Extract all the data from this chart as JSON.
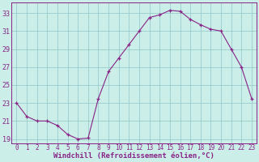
{
  "x": [
    0,
    1,
    2,
    3,
    4,
    5,
    6,
    7,
    8,
    9,
    10,
    11,
    12,
    13,
    14,
    15,
    16,
    17,
    18,
    19,
    20,
    21,
    22,
    23
  ],
  "y": [
    23.0,
    21.5,
    21.0,
    21.0,
    20.5,
    19.5,
    19.0,
    19.1,
    23.5,
    26.5,
    28.0,
    29.5,
    31.0,
    32.5,
    32.8,
    33.3,
    33.2,
    32.3,
    31.7,
    31.2,
    31.0,
    29.0,
    27.0,
    23.5
  ],
  "line_color": "#882288",
  "marker": "+",
  "markersize": 3.5,
  "linewidth": 0.8,
  "bg_color": "#cceee8",
  "grid_color": "#99cccc",
  "xlabel": "Windchill (Refroidissement éolien,°C)",
  "ylabel_ticks": [
    19,
    21,
    23,
    25,
    27,
    29,
    31,
    33
  ],
  "xlim": [
    -0.5,
    23.5
  ],
  "ylim": [
    18.5,
    34.2
  ],
  "xticks": [
    0,
    1,
    2,
    3,
    4,
    5,
    6,
    7,
    8,
    9,
    10,
    11,
    12,
    13,
    14,
    15,
    16,
    17,
    18,
    19,
    20,
    21,
    22,
    23
  ],
  "font_color": "#882288",
  "xlabel_fontsize": 6.5,
  "tick_fontsize": 5.5,
  "ytick_fontsize": 6.0
}
